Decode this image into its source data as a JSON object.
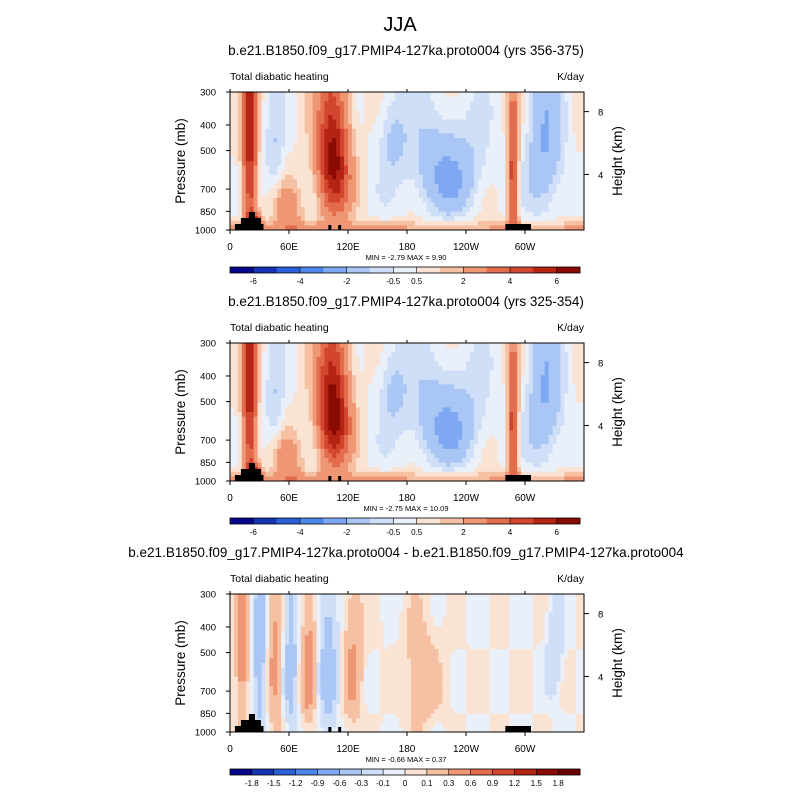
{
  "figure": {
    "main_title": "JJA",
    "panel_units": "K/day",
    "panel_variable": "Total diabatic heating",
    "y_left_label": "Pressure (mb)",
    "y_right_label": "Height (km)"
  },
  "chart_data": [
    {
      "type": "heatmap",
      "title": "b.e21.B1850.f09_g17.PMIP4-127ka.proto004 (yrs 356-375)",
      "subtitle_left": "Total diabatic heating",
      "subtitle_right": "K/day",
      "xlabel": "",
      "ylabel": "Pressure (mb)",
      "ylabel_right": "Height (km)",
      "x_ticks": [
        "0",
        "60E",
        "120E",
        "180",
        "120W",
        "60W"
      ],
      "x_tick_values": [
        0,
        60,
        120,
        180,
        240,
        300
      ],
      "xlim": [
        0,
        360
      ],
      "y_ticks": [
        300,
        400,
        500,
        700,
        850,
        1000
      ],
      "ylim": [
        1000,
        300
      ],
      "y_right_ticks": [
        4,
        8
      ],
      "stats": "MIN =  -2.79  MAX =   9.90",
      "colorbar_labels": [
        "-6",
        "-4",
        "-2",
        "-0.5",
        "0.5",
        "2",
        "4",
        "6"
      ],
      "colorbar_colors": [
        "#06068c",
        "#1434b4",
        "#2a5fd6",
        "#4d86ea",
        "#7ea8f2",
        "#a9c6f5",
        "#cfdff8",
        "#eaf0fa",
        "#fbe3d3",
        "#f6c0a3",
        "#ef9774",
        "#e36c4d",
        "#d2452f",
        "#b52413",
        "#8a0b04"
      ],
      "levels": [
        -7,
        -6,
        -5,
        -4,
        -3,
        -2,
        -1,
        -0.5,
        0,
        0.5,
        1,
        2,
        3,
        4,
        5,
        6,
        7
      ],
      "features": {
        "heating_maxima_lon": [
          20,
          105,
          290
        ],
        "cooling_minima_lon": [
          220,
          325
        ],
        "orography_lon_ranges": [
          [
            5,
            30
          ],
          [
            100,
            103
          ],
          [
            110,
            112
          ],
          [
            280,
            300
          ]
        ]
      }
    },
    {
      "type": "heatmap",
      "title": "b.e21.B1850.f09_g17.PMIP4-127ka.proto004 (yrs 325-354)",
      "subtitle_left": "Total diabatic heating",
      "subtitle_right": "K/day",
      "xlabel": "",
      "ylabel": "Pressure (mb)",
      "ylabel_right": "Height (km)",
      "x_ticks": [
        "0",
        "60E",
        "120E",
        "180",
        "120W",
        "60W"
      ],
      "x_tick_values": [
        0,
        60,
        120,
        180,
        240,
        300
      ],
      "xlim": [
        0,
        360
      ],
      "y_ticks": [
        300,
        400,
        500,
        700,
        850,
        1000
      ],
      "ylim": [
        1000,
        300
      ],
      "y_right_ticks": [
        4,
        8
      ],
      "stats": "MIN =  -2.75  MAX =  10.09",
      "colorbar_labels": [
        "-6",
        "-4",
        "-2",
        "-0.5",
        "0.5",
        "2",
        "4",
        "6"
      ],
      "colorbar_colors": [
        "#06068c",
        "#1434b4",
        "#2a5fd6",
        "#4d86ea",
        "#7ea8f2",
        "#a9c6f5",
        "#cfdff8",
        "#eaf0fa",
        "#fbe3d3",
        "#f6c0a3",
        "#ef9774",
        "#e36c4d",
        "#d2452f",
        "#b52413",
        "#8a0b04"
      ],
      "levels": [
        -7,
        -6,
        -5,
        -4,
        -3,
        -2,
        -1,
        -0.5,
        0,
        0.5,
        1,
        2,
        3,
        4,
        5,
        6,
        7
      ],
      "features": {
        "heating_maxima_lon": [
          20,
          110,
          290
        ],
        "cooling_minima_lon": [
          220,
          325
        ],
        "orography_lon_ranges": [
          [
            5,
            30
          ],
          [
            100,
            103
          ],
          [
            110,
            112
          ],
          [
            280,
            300
          ]
        ]
      }
    },
    {
      "type": "heatmap",
      "title": "b.e21.B1850.f09_g17.PMIP4-127ka.proto004 - b.e21.B1850.f09_g17.PMIP4-127ka.proto004",
      "subtitle_left": "Total diabatic heating",
      "subtitle_right": "K/day",
      "xlabel": "",
      "ylabel": "Pressure (mb)",
      "ylabel_right": "Height (km)",
      "x_ticks": [
        "0",
        "60E",
        "120E",
        "180",
        "120W",
        "60W"
      ],
      "x_tick_values": [
        0,
        60,
        120,
        180,
        240,
        300
      ],
      "xlim": [
        0,
        360
      ],
      "y_ticks": [
        300,
        400,
        500,
        700,
        850,
        1000
      ],
      "ylim": [
        1000,
        300
      ],
      "y_right_ticks": [
        4,
        8
      ],
      "stats": "MIN =  -0.66  MAX =   0.37",
      "colorbar_labels": [
        "-1.8",
        "-1.5",
        "-1.2",
        "-0.9",
        "-0.6",
        "-0.3",
        "-0.1",
        "0",
        "0.1",
        "0.3",
        "0.6",
        "0.9",
        "1.2",
        "1.5",
        "1.8"
      ],
      "colorbar_colors": [
        "#06068c",
        "#1434b4",
        "#2a5fd6",
        "#4d86ea",
        "#7ea8f2",
        "#a9c6f5",
        "#cfdff8",
        "#eaf0fa",
        "#fbe3d3",
        "#f6c0a3",
        "#ef9774",
        "#e36c4d",
        "#d2452f",
        "#b52413",
        "#8a0b04",
        "#6a0000"
      ],
      "levels": [
        -2.1,
        -1.8,
        -1.5,
        -1.2,
        -0.9,
        -0.6,
        -0.3,
        -0.1,
        0,
        0.1,
        0.3,
        0.6,
        0.9,
        1.2,
        1.5,
        1.8,
        2.1
      ],
      "features": {
        "positive_bands_lon": [
          10,
          45,
          75,
          125,
          195
        ],
        "negative_bands_lon": [
          25,
          60,
          100,
          330
        ],
        "orography_lon_ranges": [
          [
            5,
            30
          ],
          [
            100,
            103
          ],
          [
            110,
            112
          ],
          [
            280,
            300
          ]
        ]
      }
    }
  ]
}
